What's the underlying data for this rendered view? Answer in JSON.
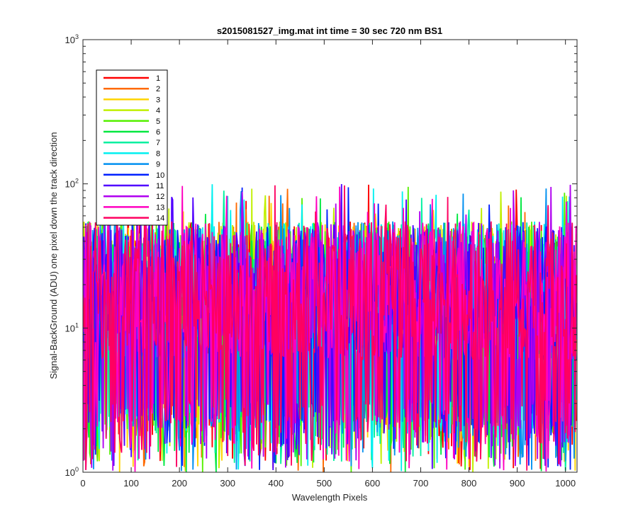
{
  "chart_data": {
    "type": "line",
    "title": "s2015081527_img.mat int time = 30 sec  720 nm BS1",
    "xlabel": "Wavelength Pixels",
    "ylabel": "Signal-BackGround (ADU) one pixel down the track direction",
    "xlim": [
      0,
      1024
    ],
    "ylim": [
      1,
      1000
    ],
    "yscale": "log",
    "x_ticks": [
      0,
      100,
      200,
      300,
      400,
      500,
      600,
      700,
      800,
      900,
      1000
    ],
    "y_ticks": [
      {
        "value": 1,
        "base": "10",
        "exp": "0"
      },
      {
        "value": 10,
        "base": "10",
        "exp": "1"
      },
      {
        "value": 100,
        "base": "10",
        "exp": "2"
      },
      {
        "value": 1000,
        "base": "10",
        "exp": "3"
      }
    ],
    "grid": false,
    "legend_position": "top-left",
    "series": [
      {
        "name": "1",
        "color": "#ff0000"
      },
      {
        "name": "2",
        "color": "#ff6a00"
      },
      {
        "name": "3",
        "color": "#ffd400"
      },
      {
        "name": "4",
        "color": "#c0f000"
      },
      {
        "name": "5",
        "color": "#55f000"
      },
      {
        "name": "6",
        "color": "#00e840"
      },
      {
        "name": "7",
        "color": "#00f0a0"
      },
      {
        "name": "8",
        "color": "#00f0f0"
      },
      {
        "name": "9",
        "color": "#0090f0"
      },
      {
        "name": "10",
        "color": "#0020ff"
      },
      {
        "name": "11",
        "color": "#5000ff"
      },
      {
        "name": "12",
        "color": "#b000f0"
      },
      {
        "name": "13",
        "color": "#ff00c0"
      },
      {
        "name": "14",
        "color": "#ff0060"
      }
    ],
    "value_model": {
      "note_values": "noisy signal per pixel 0..1023, typical 10-40 ADU, peaks near 100, minimum 1",
      "median": 20,
      "max": 100,
      "min": 1
    }
  }
}
